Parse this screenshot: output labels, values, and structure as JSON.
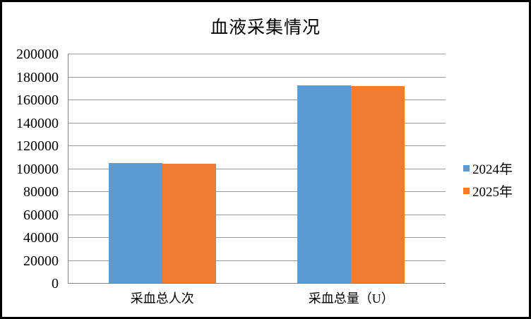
{
  "chart_data": {
    "type": "bar",
    "title": "血液采集情况",
    "categories": [
      "采血总人次",
      "采血总量（U）"
    ],
    "series": [
      {
        "name": "2024年",
        "color": "#5B9BD5",
        "values": [
          105000,
          173200
        ]
      },
      {
        "name": "2025年",
        "color": "#ED7D31",
        "values": [
          104700,
          172200
        ]
      }
    ],
    "ylim": [
      0,
      200000
    ],
    "ytick_step": 20000,
    "ytick_labels": [
      "0",
      "20000",
      "40000",
      "60000",
      "80000",
      "100000",
      "120000",
      "140000",
      "160000",
      "180000",
      "200000"
    ],
    "xlabel": "",
    "ylabel": "",
    "grid": true,
    "legend_position": "right",
    "colors": {
      "gridline": "#9a9a9a",
      "axis": "#808080",
      "text": "#000000",
      "background": "#ffffff",
      "frame_border": "#000000"
    }
  }
}
